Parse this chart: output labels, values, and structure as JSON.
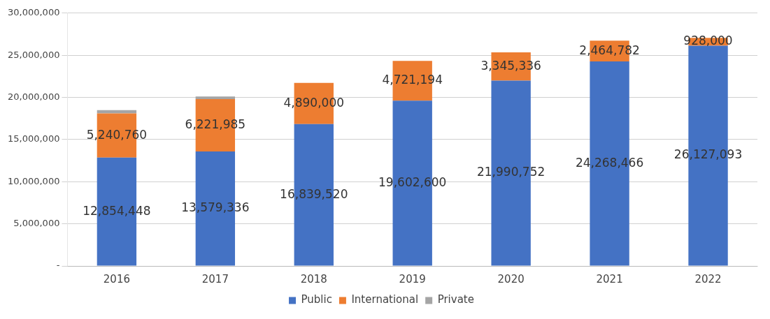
{
  "chart_data": {
    "type": "bar",
    "stacked": true,
    "categories": [
      "2016",
      "2017",
      "2018",
      "2019",
      "2020",
      "2021",
      "2022"
    ],
    "series": [
      {
        "name": "Public",
        "color": "#4472c4",
        "values": [
          12854448,
          13579336,
          16839520,
          19602600,
          21990752,
          24268466,
          26127093
        ],
        "value_labels": [
          "12,854,448",
          "13,579,336",
          "16,839,520",
          "19,602,600",
          "21,990,752",
          "24,268,466",
          "26,127,093"
        ]
      },
      {
        "name": "International",
        "color": "#ed7d31",
        "values": [
          5240760,
          6221985,
          4890000,
          4721194,
          3345336,
          2464782,
          928000
        ],
        "value_labels": [
          "5,240,760",
          "6,221,985",
          "4,890,000",
          "4,721,194",
          "3,345,336",
          "2,464,782",
          "928,000"
        ]
      },
      {
        "name": "Private",
        "color": "#a5a5a5",
        "values": [
          400000,
          300000,
          null,
          null,
          null,
          null,
          null
        ]
      }
    ],
    "ylim": [
      0,
      30000000
    ],
    "yticks": [
      {
        "value": 0,
        "label": "-"
      },
      {
        "value": 5000000,
        "label": "5,000,000"
      },
      {
        "value": 10000000,
        "label": "10,000,000"
      },
      {
        "value": 15000000,
        "label": "15,000,000"
      },
      {
        "value": 20000000,
        "label": "20,000,000"
      },
      {
        "value": 25000000,
        "label": "25,000,000"
      },
      {
        "value": 30000000,
        "label": "30,000,000"
      }
    ],
    "grid": "y",
    "legend": "bottom"
  }
}
